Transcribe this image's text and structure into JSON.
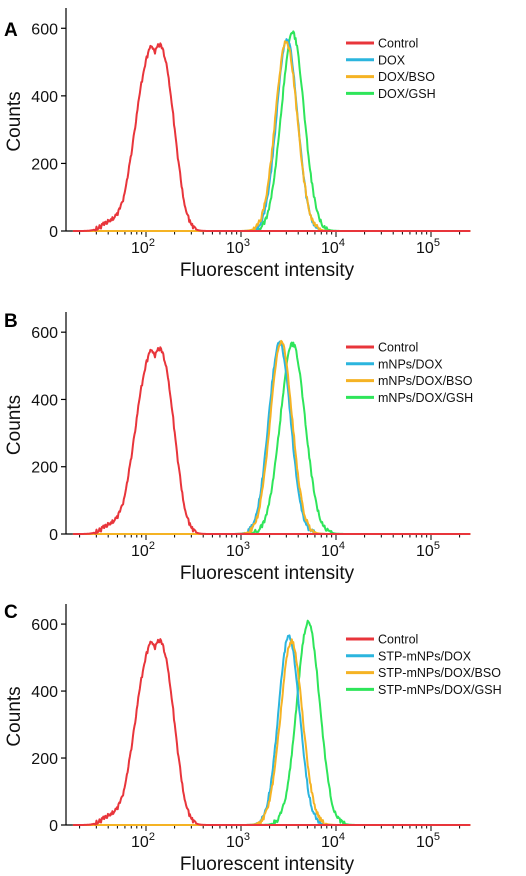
{
  "colors": {
    "control": "#e8353b",
    "series2": "#2bb5de",
    "series3": "#f5b324",
    "series4": "#2ee55a"
  },
  "chart_data": [
    {
      "type": "line",
      "panel_label": "A",
      "xlabel": "Fluorescent intensity",
      "ylabel": "Counts",
      "x_scale": "log",
      "xlim": [
        17,
        260000
      ],
      "ylim": [
        0,
        660
      ],
      "yticks": [
        "0",
        "200",
        "400",
        "600"
      ],
      "xtick_base": "10",
      "xtick_exponents": [
        "2",
        "3",
        "4",
        "5"
      ],
      "legend_position": "top-right",
      "series": [
        {
          "name": "Control",
          "color": "#e8353b",
          "peak_x": 130,
          "peak_y": 555,
          "sigma": 0.205
        },
        {
          "name": "DOX",
          "color": "#2bb5de",
          "peak_x": 3050,
          "peak_y": 568,
          "sigma": 0.11
        },
        {
          "name": "DOX/BSO",
          "color": "#f5b324",
          "peak_x": 3000,
          "peak_y": 560,
          "sigma": 0.115
        },
        {
          "name": "DOX/GSH",
          "color": "#2ee55a",
          "peak_x": 3500,
          "peak_y": 585,
          "sigma": 0.12
        }
      ]
    },
    {
      "type": "line",
      "panel_label": "B",
      "xlabel": "Fluorescent intensity",
      "ylabel": "Counts",
      "x_scale": "log",
      "xlim": [
        17,
        260000
      ],
      "ylim": [
        0,
        660
      ],
      "yticks": [
        "0",
        "200",
        "400",
        "600"
      ],
      "xtick_base": "10",
      "xtick_exponents": [
        "2",
        "3",
        "4",
        "5"
      ],
      "legend_position": "top-right",
      "series": [
        {
          "name": "Control",
          "color": "#e8353b",
          "peak_x": 130,
          "peak_y": 555,
          "sigma": 0.205
        },
        {
          "name": "mNPs/DOX",
          "color": "#2bb5de",
          "peak_x": 2550,
          "peak_y": 568,
          "sigma": 0.115
        },
        {
          "name": "mNPs/DOX/BSO",
          "color": "#f5b324",
          "peak_x": 2650,
          "peak_y": 572,
          "sigma": 0.115
        },
        {
          "name": "mNPs/DOX/GSH",
          "color": "#2ee55a",
          "peak_x": 3500,
          "peak_y": 565,
          "sigma": 0.13
        }
      ]
    },
    {
      "type": "line",
      "panel_label": "C",
      "xlabel": "Fluorescent intensity",
      "ylabel": "Counts",
      "x_scale": "log",
      "xlim": [
        17,
        260000
      ],
      "ylim": [
        0,
        660
      ],
      "yticks": [
        "0",
        "200",
        "400",
        "600"
      ],
      "xtick_base": "10",
      "xtick_exponents": [
        "2",
        "3",
        "4",
        "5"
      ],
      "legend_position": "top-right",
      "series": [
        {
          "name": "Control",
          "color": "#e8353b",
          "peak_x": 130,
          "peak_y": 555,
          "sigma": 0.205
        },
        {
          "name": "STP-mNPs/DOX",
          "color": "#2bb5de",
          "peak_x": 3200,
          "peak_y": 565,
          "sigma": 0.11
        },
        {
          "name": "STP-mNPs/DOX/BSO",
          "color": "#f5b324",
          "peak_x": 3400,
          "peak_y": 548,
          "sigma": 0.115
        },
        {
          "name": "STP-mNPs/DOX/GSH",
          "color": "#2ee55a",
          "peak_x": 5100,
          "peak_y": 605,
          "sigma": 0.12
        }
      ]
    }
  ]
}
